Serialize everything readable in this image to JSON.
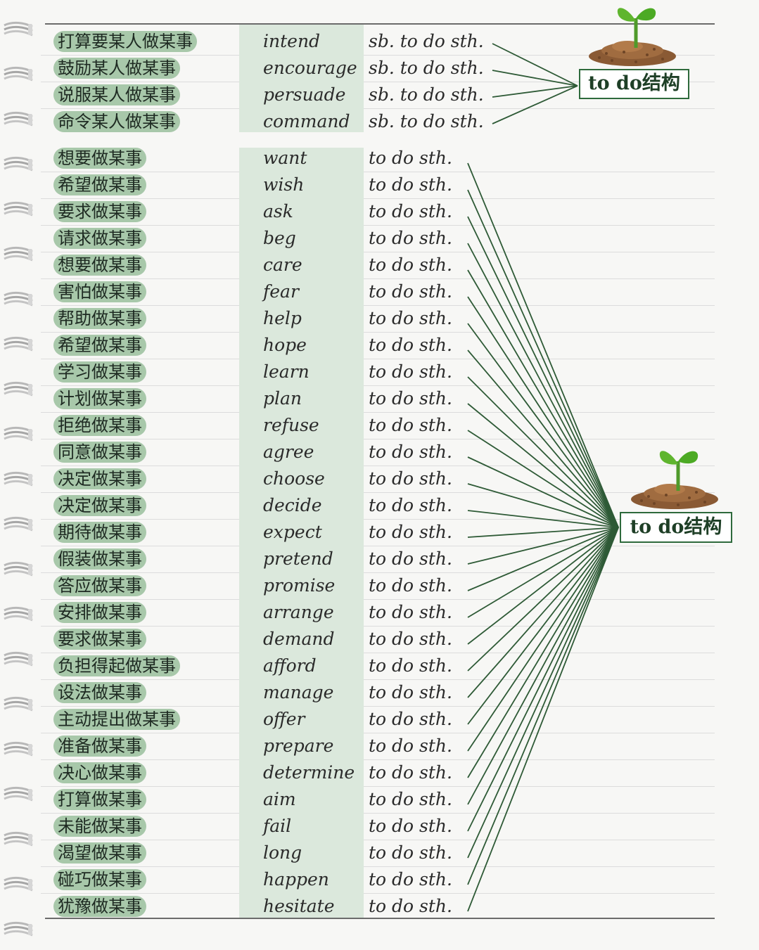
{
  "colors": {
    "highlight": "#a8c8aa",
    "column": "#dbe8dc",
    "lines": "#2e5a36",
    "tag_border": "#2e6a3c"
  },
  "icons": [
    "spiral-ring-icon",
    "sprout-icon"
  ],
  "group1": {
    "tag": "to do结构",
    "rows": [
      {
        "cn": "打算要某人做某事",
        "verb": "intend",
        "obj": "sb. to do sth."
      },
      {
        "cn": "鼓励某人做某事",
        "verb": "encourage",
        "obj": "sb. to do sth."
      },
      {
        "cn": "说服某人做某事",
        "verb": "persuade",
        "obj": "sb. to do sth."
      },
      {
        "cn": "命令某人做某事",
        "verb": "command",
        "obj": "sb. to do sth."
      }
    ]
  },
  "group2": {
    "tag": "to do结构",
    "rows": [
      {
        "cn": "想要做某事",
        "verb": "want",
        "obj": "to do sth."
      },
      {
        "cn": "希望做某事",
        "verb": "wish",
        "obj": "to do sth."
      },
      {
        "cn": "要求做某事",
        "verb": "ask",
        "obj": "to do sth."
      },
      {
        "cn": "请求做某事",
        "verb": "beg",
        "obj": "to do sth."
      },
      {
        "cn": "想要做某事",
        "verb": "care",
        "obj": "to do sth."
      },
      {
        "cn": "害怕做某事",
        "verb": "fear",
        "obj": "to do sth."
      },
      {
        "cn": "帮助做某事",
        "verb": "help",
        "obj": "to do sth."
      },
      {
        "cn": "希望做某事",
        "verb": "hope",
        "obj": "to do sth."
      },
      {
        "cn": "学习做某事",
        "verb": "learn",
        "obj": "to do sth."
      },
      {
        "cn": "计划做某事",
        "verb": "plan",
        "obj": "to do sth."
      },
      {
        "cn": "拒绝做某事",
        "verb": "refuse",
        "obj": "to do sth."
      },
      {
        "cn": "同意做某事",
        "verb": "agree",
        "obj": "to do sth."
      },
      {
        "cn": "决定做某事",
        "verb": "choose",
        "obj": "to do sth."
      },
      {
        "cn": "决定做某事",
        "verb": "decide",
        "obj": "to do sth."
      },
      {
        "cn": "期待做某事",
        "verb": "expect",
        "obj": "to do sth."
      },
      {
        "cn": "假装做某事",
        "verb": "pretend",
        "obj": "to do sth."
      },
      {
        "cn": "答应做某事",
        "verb": "promise",
        "obj": "to do sth."
      },
      {
        "cn": "安排做某事",
        "verb": "arrange",
        "obj": "to do sth."
      },
      {
        "cn": "要求做某事",
        "verb": "demand",
        "obj": "to do sth."
      },
      {
        "cn": "负担得起做某事",
        "verb": "afford",
        "obj": "to do sth."
      },
      {
        "cn": "设法做某事",
        "verb": "manage",
        "obj": "to do sth."
      },
      {
        "cn": "主动提出做某事",
        "verb": "offer",
        "obj": "to do sth."
      },
      {
        "cn": "准备做某事",
        "verb": "prepare",
        "obj": "to do sth."
      },
      {
        "cn": "决心做某事",
        "verb": "determine",
        "obj": "to do sth."
      },
      {
        "cn": "打算做某事",
        "verb": "aim",
        "obj": "to do sth."
      },
      {
        "cn": "未能做某事",
        "verb": "fail",
        "obj": "to do sth."
      },
      {
        "cn": "渴望做某事",
        "verb": "long",
        "obj": "to do sth."
      },
      {
        "cn": "碰巧做某事",
        "verb": "happen",
        "obj": "to do sth."
      },
      {
        "cn": "犹豫做某事",
        "verb": "hesitate",
        "obj": "to do sth."
      }
    ]
  }
}
